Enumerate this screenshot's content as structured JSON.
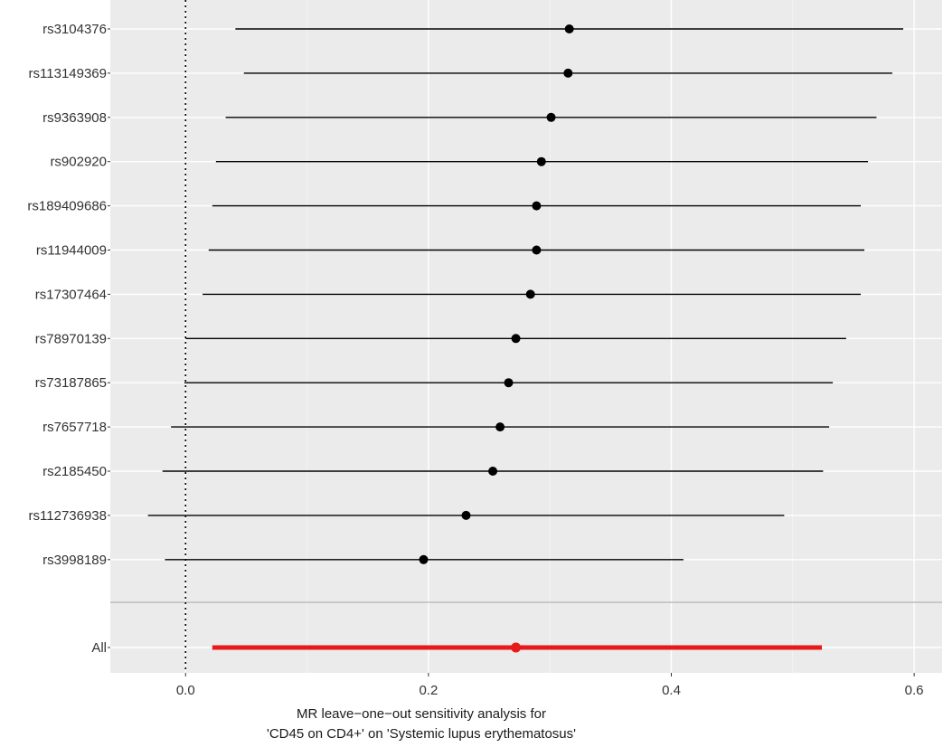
{
  "chart_data": {
    "type": "forest",
    "x_ticks": [
      0.0,
      0.2,
      0.4,
      0.6
    ],
    "x_tick_labels": [
      "0.0",
      "0.2",
      "0.4",
      "0.6"
    ],
    "xlim": [
      -0.062,
      0.623
    ],
    "reference_line_x": 0,
    "grid": true,
    "xlabel_line1": "MR leave−one−out sensitivity analysis for",
    "xlabel_line2": "'CD45 on CD4+' on 'Systemic lupus erythematosus'",
    "snps": [
      {
        "label": "rs3104376",
        "b": 0.316,
        "lo": 0.041,
        "hi": 0.591
      },
      {
        "label": "rs113149369",
        "b": 0.315,
        "lo": 0.048,
        "hi": 0.582
      },
      {
        "label": "rs9363908",
        "b": 0.301,
        "lo": 0.033,
        "hi": 0.569
      },
      {
        "label": "rs902920",
        "b": 0.293,
        "lo": 0.025,
        "hi": 0.562
      },
      {
        "label": "rs189409686",
        "b": 0.289,
        "lo": 0.022,
        "hi": 0.556
      },
      {
        "label": "rs11944009",
        "b": 0.289,
        "lo": 0.019,
        "hi": 0.559
      },
      {
        "label": "rs17307464",
        "b": 0.284,
        "lo": 0.014,
        "hi": 0.556
      },
      {
        "label": "rs78970139",
        "b": 0.272,
        "lo": 0.0,
        "hi": 0.544
      },
      {
        "label": "rs73187865",
        "b": 0.266,
        "lo": -0.001,
        "hi": 0.533
      },
      {
        "label": "rs7657718",
        "b": 0.259,
        "lo": -0.012,
        "hi": 0.53
      },
      {
        "label": "rs2185450",
        "b": 0.253,
        "lo": -0.019,
        "hi": 0.525
      },
      {
        "label": "rs112736938",
        "b": 0.231,
        "lo": -0.031,
        "hi": 0.493
      },
      {
        "label": "rs3998189",
        "b": 0.196,
        "lo": -0.017,
        "hi": 0.41
      }
    ],
    "overall": {
      "label": "All",
      "b": 0.272,
      "lo": 0.022,
      "hi": 0.524
    },
    "colors": {
      "panel_bg": "#ebebeb",
      "grid_major": "#ffffff",
      "snp_point": "#000000",
      "overall": "#e8191a",
      "separator": "#bdbdbd",
      "text": "#333333",
      "axis_title": "#1a1a1a"
    }
  }
}
